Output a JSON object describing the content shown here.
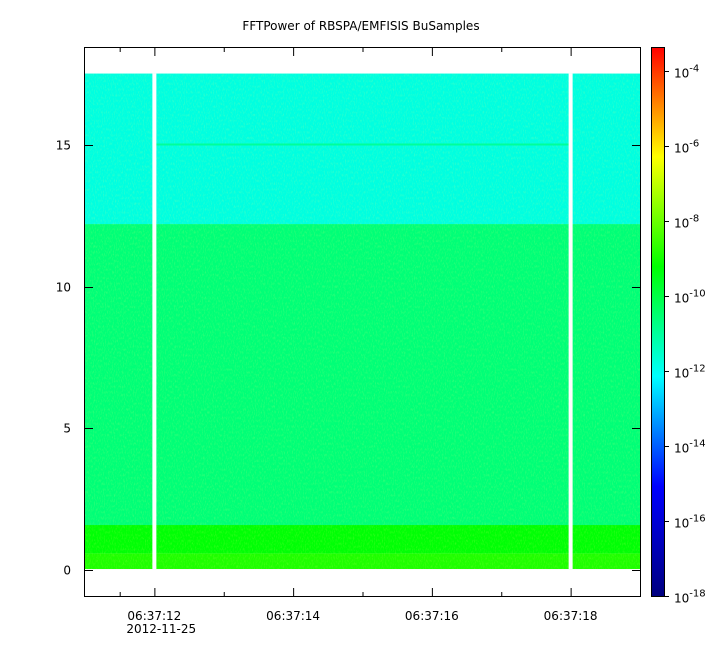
{
  "chart_data": {
    "type": "heatmap",
    "title": "FFTPower of RBSPA/EMFISIS  BuSamples",
    "xlabel": "",
    "ylabel": "",
    "x_axis": {
      "type": "time",
      "range": [
        "06:37:11.0",
        "06:37:19.0"
      ],
      "ticks": [
        {
          "value": "06:37:12",
          "label": "06:37:12",
          "sublabel": "2012-11-25"
        },
        {
          "value": "06:37:14",
          "label": "06:37:14",
          "sublabel": ""
        },
        {
          "value": "06:37:16",
          "label": "06:37:16",
          "sublabel": ""
        },
        {
          "value": "06:37:18",
          "label": "06:37:18",
          "sublabel": ""
        }
      ],
      "minor_ticks": [
        "06:37:11.5",
        "06:37:13",
        "06:37:15",
        "06:37:17",
        "06:37:19"
      ]
    },
    "y_axis": {
      "range": [
        -0.9,
        18.4
      ],
      "ticks": [
        {
          "value": 0,
          "label": "0"
        },
        {
          "value": 5,
          "label": "5"
        },
        {
          "value": 10,
          "label": "10"
        },
        {
          "value": 15,
          "label": "15"
        }
      ]
    },
    "data_extent": {
      "y": [
        0.05,
        17.5
      ],
      "x": [
        "06:37:11.0",
        "06:37:19.0"
      ]
    },
    "data_gaps": [
      "06:37:12",
      "06:37:18"
    ],
    "bands": [
      {
        "y_from": 0.05,
        "y_to": 0.6,
        "log10_power": -8.9
      },
      {
        "y_from": 0.6,
        "y_to": 1.6,
        "log10_power": -9.3
      },
      {
        "y_from": 1.6,
        "y_to": 12.2,
        "log10_power": -10.6
      },
      {
        "y_from": 12.2,
        "y_to": 17.5,
        "log10_power": -11.8
      }
    ],
    "line_feature": {
      "y": 15.0,
      "x_from": "06:37:12",
      "x_to": "06:37:18",
      "log10_power": -11.0
    },
    "colorbar": {
      "scale": "log",
      "range": [
        -18,
        -3.4
      ],
      "ticks": [
        {
          "exp": -4,
          "base": "10",
          "sup": "-4"
        },
        {
          "exp": -6,
          "base": "10",
          "sup": "-6"
        },
        {
          "exp": -8,
          "base": "10",
          "sup": "-8"
        },
        {
          "exp": -10,
          "base": "10",
          "sup": "-10"
        },
        {
          "exp": -12,
          "base": "10",
          "sup": "-12"
        },
        {
          "exp": -14,
          "base": "10",
          "sup": "-14"
        },
        {
          "exp": -16,
          "base": "10",
          "sup": "-16"
        },
        {
          "exp": -18,
          "base": "10",
          "sup": "-18"
        }
      ],
      "colormap": [
        "#000080",
        "#0000ff",
        "#00ffff",
        "#00ff00",
        "#ffff00",
        "#ff0000"
      ]
    },
    "grid": false,
    "legend": "none"
  }
}
